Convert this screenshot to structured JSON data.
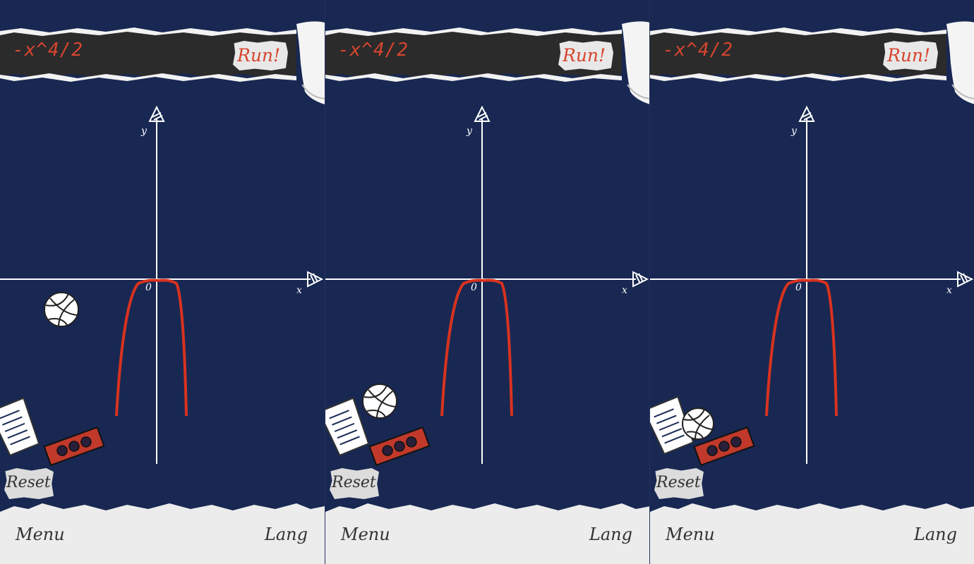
{
  "panels": [
    {
      "expression": "-x^4/2",
      "run_label": "Run!",
      "reset_label": "Reset",
      "menu_label": "Menu",
      "lang_label": "Lang",
      "axis": {
        "x_label": "x",
        "y_label": "y",
        "origin_label": "0"
      },
      "objects": {
        "ball": "volleyball-icon",
        "basket": "basket-icon",
        "brick": "brick-icon"
      }
    },
    {
      "expression": "-x^4/2",
      "run_label": "Run!",
      "reset_label": "Reset",
      "menu_label": "Menu",
      "lang_label": "Lang",
      "axis": {
        "x_label": "x",
        "y_label": "y",
        "origin_label": "0"
      },
      "objects": {
        "ball": "volleyball-icon",
        "basket": "basket-icon",
        "brick": "brick-icon"
      }
    },
    {
      "expression": "-x^4/2",
      "run_label": "Run!",
      "reset_label": "Reset",
      "menu_label": "Menu",
      "lang_label": "Lang",
      "axis": {
        "x_label": "x",
        "y_label": "y",
        "origin_label": "0"
      },
      "objects": {
        "ball": "volleyball-icon",
        "basket": "basket-icon",
        "brick": "brick-icon"
      }
    }
  ],
  "colors": {
    "board": "#182852",
    "curve": "#d8321f",
    "expression": "#d8452f",
    "top_bar": "#2b2b2b",
    "paper": "#ececec",
    "brick": "#c0392b"
  }
}
